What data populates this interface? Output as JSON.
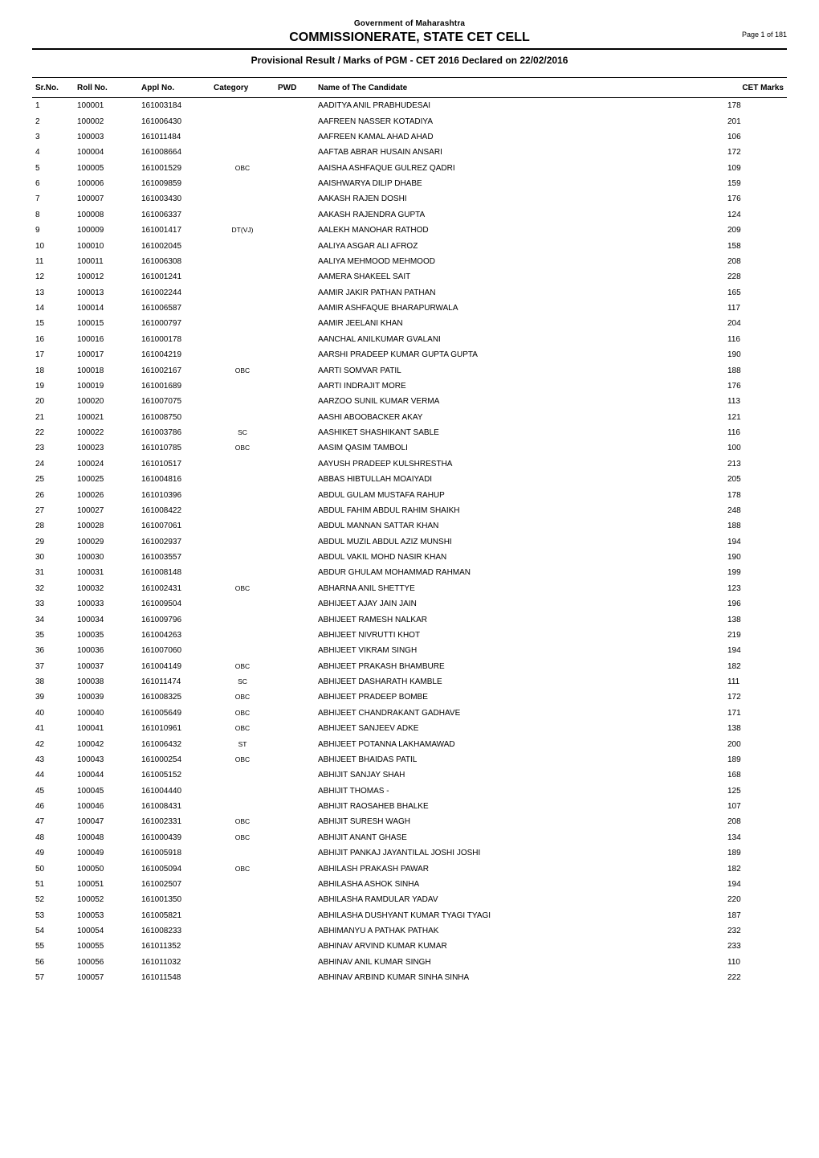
{
  "header": {
    "gov": "Government of Maharashtra",
    "commission": "COMMISSIONERATE, STATE CET CELL",
    "subtitle": "Provisional Result / Marks  of PGM - CET 2016  Declared on 22/02/2016",
    "page_no": "Page 1 of 181"
  },
  "columns": {
    "sr": "Sr.No.",
    "roll": "Roll No.",
    "appl": "Appl No.",
    "cat": "Category",
    "pwd": "PWD",
    "name": "Name of The Candidate",
    "cet": "CET Marks"
  },
  "rows": [
    {
      "sr": "1",
      "roll": "100001",
      "appl": "161003184",
      "cat": "",
      "pwd": "",
      "name": "AADITYA ANIL PRABHUDESAI",
      "cet": "178"
    },
    {
      "sr": "2",
      "roll": "100002",
      "appl": "161006430",
      "cat": "",
      "pwd": "",
      "name": "AAFREEN NASSER KOTADIYA",
      "cet": "201"
    },
    {
      "sr": "3",
      "roll": "100003",
      "appl": "161011484",
      "cat": "",
      "pwd": "",
      "name": "AAFREEN KAMAL AHAD AHAD",
      "cet": "106"
    },
    {
      "sr": "4",
      "roll": "100004",
      "appl": "161008664",
      "cat": "",
      "pwd": "",
      "name": "AAFTAB ABRAR HUSAIN ANSARI",
      "cet": "172"
    },
    {
      "sr": "5",
      "roll": "100005",
      "appl": "161001529",
      "cat": "OBC",
      "pwd": "",
      "name": "AAISHA ASHFAQUE GULREZ QADRI",
      "cet": "109"
    },
    {
      "sr": "6",
      "roll": "100006",
      "appl": "161009859",
      "cat": "",
      "pwd": "",
      "name": "AAISHWARYA DILIP DHABE",
      "cet": "159"
    },
    {
      "sr": "7",
      "roll": "100007",
      "appl": "161003430",
      "cat": "",
      "pwd": "",
      "name": "AAKASH RAJEN DOSHI",
      "cet": "176"
    },
    {
      "sr": "8",
      "roll": "100008",
      "appl": "161006337",
      "cat": "",
      "pwd": "",
      "name": "AAKASH RAJENDRA GUPTA",
      "cet": "124"
    },
    {
      "sr": "9",
      "roll": "100009",
      "appl": "161001417",
      "cat": "DT(VJ)",
      "pwd": "",
      "name": "AALEKH MANOHAR RATHOD",
      "cet": "209"
    },
    {
      "sr": "10",
      "roll": "100010",
      "appl": "161002045",
      "cat": "",
      "pwd": "",
      "name": "AALIYA ASGAR ALI AFROZ",
      "cet": "158"
    },
    {
      "sr": "11",
      "roll": "100011",
      "appl": "161006308",
      "cat": "",
      "pwd": "",
      "name": "AALIYA MEHMOOD MEHMOOD",
      "cet": "208"
    },
    {
      "sr": "12",
      "roll": "100012",
      "appl": "161001241",
      "cat": "",
      "pwd": "",
      "name": "AAMERA SHAKEEL SAIT",
      "cet": "228"
    },
    {
      "sr": "13",
      "roll": "100013",
      "appl": "161002244",
      "cat": "",
      "pwd": "",
      "name": "AAMIR JAKIR PATHAN PATHAN",
      "cet": "165"
    },
    {
      "sr": "14",
      "roll": "100014",
      "appl": "161006587",
      "cat": "",
      "pwd": "",
      "name": "AAMIR ASHFAQUE BHARAPURWALA",
      "cet": "117"
    },
    {
      "sr": "15",
      "roll": "100015",
      "appl": "161000797",
      "cat": "",
      "pwd": "",
      "name": "AAMIR JEELANI KHAN",
      "cet": "204"
    },
    {
      "sr": "16",
      "roll": "100016",
      "appl": "161000178",
      "cat": "",
      "pwd": "",
      "name": "AANCHAL ANILKUMAR GVALANI",
      "cet": "116"
    },
    {
      "sr": "17",
      "roll": "100017",
      "appl": "161004219",
      "cat": "",
      "pwd": "",
      "name": "AARSHI PRADEEP KUMAR GUPTA GUPTA",
      "cet": "190"
    },
    {
      "sr": "18",
      "roll": "100018",
      "appl": "161002167",
      "cat": "OBC",
      "pwd": "",
      "name": "AARTI SOMVAR PATIL",
      "cet": "188"
    },
    {
      "sr": "19",
      "roll": "100019",
      "appl": "161001689",
      "cat": "",
      "pwd": "",
      "name": "AARTI INDRAJIT MORE",
      "cet": "176"
    },
    {
      "sr": "20",
      "roll": "100020",
      "appl": "161007075",
      "cat": "",
      "pwd": "",
      "name": "AARZOO SUNIL KUMAR VERMA",
      "cet": "113"
    },
    {
      "sr": "21",
      "roll": "100021",
      "appl": "161008750",
      "cat": "",
      "pwd": "",
      "name": "AASHI ABOOBACKER AKAY",
      "cet": "121"
    },
    {
      "sr": "22",
      "roll": "100022",
      "appl": "161003786",
      "cat": "SC",
      "pwd": "",
      "name": "AASHIKET SHASHIKANT SABLE",
      "cet": "116"
    },
    {
      "sr": "23",
      "roll": "100023",
      "appl": "161010785",
      "cat": "OBC",
      "pwd": "",
      "name": "AASIM QASIM TAMBOLI",
      "cet": "100"
    },
    {
      "sr": "24",
      "roll": "100024",
      "appl": "161010517",
      "cat": "",
      "pwd": "",
      "name": "AAYUSH PRADEEP KULSHRESTHA",
      "cet": "213"
    },
    {
      "sr": "25",
      "roll": "100025",
      "appl": "161004816",
      "cat": "",
      "pwd": "",
      "name": "ABBAS HIBTULLAH MOAIYADI",
      "cet": "205"
    },
    {
      "sr": "26",
      "roll": "100026",
      "appl": "161010396",
      "cat": "",
      "pwd": "",
      "name": "ABDUL GULAM MUSTAFA RAHUP",
      "cet": "178"
    },
    {
      "sr": "27",
      "roll": "100027",
      "appl": "161008422",
      "cat": "",
      "pwd": "",
      "name": "ABDUL FAHIM ABDUL RAHIM SHAIKH",
      "cet": "248"
    },
    {
      "sr": "28",
      "roll": "100028",
      "appl": "161007061",
      "cat": "",
      "pwd": "",
      "name": "ABDUL MANNAN SATTAR KHAN",
      "cet": "188"
    },
    {
      "sr": "29",
      "roll": "100029",
      "appl": "161002937",
      "cat": "",
      "pwd": "",
      "name": "ABDUL MUZIL ABDUL AZIZ MUNSHI",
      "cet": "194"
    },
    {
      "sr": "30",
      "roll": "100030",
      "appl": "161003557",
      "cat": "",
      "pwd": "",
      "name": "ABDUL VAKIL MOHD NASIR KHAN",
      "cet": "190"
    },
    {
      "sr": "31",
      "roll": "100031",
      "appl": "161008148",
      "cat": "",
      "pwd": "",
      "name": "ABDUR GHULAM MOHAMMAD RAHMAN",
      "cet": "199"
    },
    {
      "sr": "32",
      "roll": "100032",
      "appl": "161002431",
      "cat": "OBC",
      "pwd": "",
      "name": "ABHARNA ANIL SHETTYE",
      "cet": "123"
    },
    {
      "sr": "33",
      "roll": "100033",
      "appl": "161009504",
      "cat": "",
      "pwd": "",
      "name": "ABHIJEET AJAY JAIN JAIN",
      "cet": "196"
    },
    {
      "sr": "34",
      "roll": "100034",
      "appl": "161009796",
      "cat": "",
      "pwd": "",
      "name": "ABHIJEET RAMESH NALKAR",
      "cet": "138"
    },
    {
      "sr": "35",
      "roll": "100035",
      "appl": "161004263",
      "cat": "",
      "pwd": "",
      "name": "ABHIJEET NIVRUTTI KHOT",
      "cet": "219"
    },
    {
      "sr": "36",
      "roll": "100036",
      "appl": "161007060",
      "cat": "",
      "pwd": "",
      "name": "ABHIJEET VIKRAM SINGH",
      "cet": "194"
    },
    {
      "sr": "37",
      "roll": "100037",
      "appl": "161004149",
      "cat": "OBC",
      "pwd": "",
      "name": "ABHIJEET PRAKASH BHAMBURE",
      "cet": "182"
    },
    {
      "sr": "38",
      "roll": "100038",
      "appl": "161011474",
      "cat": "SC",
      "pwd": "",
      "name": "ABHIJEET DASHARATH KAMBLE",
      "cet": "111"
    },
    {
      "sr": "39",
      "roll": "100039",
      "appl": "161008325",
      "cat": "OBC",
      "pwd": "",
      "name": "ABHIJEET PRADEEP BOMBE",
      "cet": "172"
    },
    {
      "sr": "40",
      "roll": "100040",
      "appl": "161005649",
      "cat": "OBC",
      "pwd": "",
      "name": "ABHIJEET CHANDRAKANT GADHAVE",
      "cet": "171"
    },
    {
      "sr": "41",
      "roll": "100041",
      "appl": "161010961",
      "cat": "OBC",
      "pwd": "",
      "name": "ABHIJEET SANJEEV ADKE",
      "cet": "138"
    },
    {
      "sr": "42",
      "roll": "100042",
      "appl": "161006432",
      "cat": "ST",
      "pwd": "",
      "name": "ABHIJEET POTANNA LAKHAMAWAD",
      "cet": "200"
    },
    {
      "sr": "43",
      "roll": "100043",
      "appl": "161000254",
      "cat": "OBC",
      "pwd": "",
      "name": "ABHIJEET BHAIDAS PATIL",
      "cet": "189"
    },
    {
      "sr": "44",
      "roll": "100044",
      "appl": "161005152",
      "cat": "",
      "pwd": "",
      "name": "ABHIJIT SANJAY SHAH",
      "cet": "168"
    },
    {
      "sr": "45",
      "roll": "100045",
      "appl": "161004440",
      "cat": "",
      "pwd": "",
      "name": "ABHIJIT THOMAS -",
      "cet": "125"
    },
    {
      "sr": "46",
      "roll": "100046",
      "appl": "161008431",
      "cat": "",
      "pwd": "",
      "name": "ABHIJIT RAOSAHEB BHALKE",
      "cet": "107"
    },
    {
      "sr": "47",
      "roll": "100047",
      "appl": "161002331",
      "cat": "OBC",
      "pwd": "",
      "name": "ABHIJIT SURESH WAGH",
      "cet": "208"
    },
    {
      "sr": "48",
      "roll": "100048",
      "appl": "161000439",
      "cat": "OBC",
      "pwd": "",
      "name": "ABHIJIT ANANT GHASE",
      "cet": "134"
    },
    {
      "sr": "49",
      "roll": "100049",
      "appl": "161005918",
      "cat": "",
      "pwd": "",
      "name": "ABHIJIT PANKAJ JAYANTILAL JOSHI JOSHI",
      "cet": "189"
    },
    {
      "sr": "50",
      "roll": "100050",
      "appl": "161005094",
      "cat": "OBC",
      "pwd": "",
      "name": "ABHILASH PRAKASH PAWAR",
      "cet": "182"
    },
    {
      "sr": "51",
      "roll": "100051",
      "appl": "161002507",
      "cat": "",
      "pwd": "",
      "name": "ABHILASHA ASHOK SINHA",
      "cet": "194"
    },
    {
      "sr": "52",
      "roll": "100052",
      "appl": "161001350",
      "cat": "",
      "pwd": "",
      "name": "ABHILASHA RAMDULAR YADAV",
      "cet": "220"
    },
    {
      "sr": "53",
      "roll": "100053",
      "appl": "161005821",
      "cat": "",
      "pwd": "",
      "name": "ABHILASHA DUSHYANT KUMAR TYAGI TYAGI",
      "cet": "187"
    },
    {
      "sr": "54",
      "roll": "100054",
      "appl": "161008233",
      "cat": "",
      "pwd": "",
      "name": "ABHIMANYU A PATHAK PATHAK",
      "cet": "232"
    },
    {
      "sr": "55",
      "roll": "100055",
      "appl": "161011352",
      "cat": "",
      "pwd": "",
      "name": "ABHINAV ARVIND KUMAR KUMAR",
      "cet": "233"
    },
    {
      "sr": "56",
      "roll": "100056",
      "appl": "161011032",
      "cat": "",
      "pwd": "",
      "name": "ABHINAV ANIL KUMAR SINGH",
      "cet": "110"
    },
    {
      "sr": "57",
      "roll": "100057",
      "appl": "161011548",
      "cat": "",
      "pwd": "",
      "name": "ABHINAV ARBIND KUMAR SINHA SINHA",
      "cet": "222"
    }
  ]
}
